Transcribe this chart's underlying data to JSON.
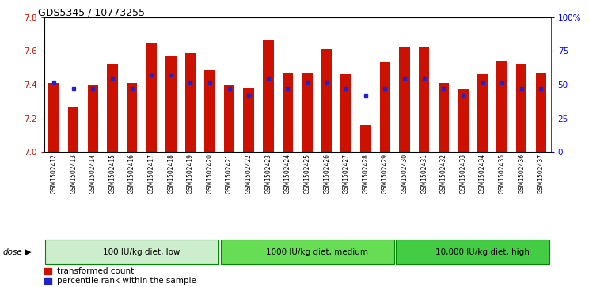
{
  "title": "GDS5345 / 10773255",
  "samples": [
    "GSM1502412",
    "GSM1502413",
    "GSM1502414",
    "GSM1502415",
    "GSM1502416",
    "GSM1502417",
    "GSM1502418",
    "GSM1502419",
    "GSM1502420",
    "GSM1502421",
    "GSM1502422",
    "GSM1502423",
    "GSM1502424",
    "GSM1502425",
    "GSM1502426",
    "GSM1502427",
    "GSM1502428",
    "GSM1502429",
    "GSM1502430",
    "GSM1502431",
    "GSM1502432",
    "GSM1502433",
    "GSM1502434",
    "GSM1502435",
    "GSM1502436",
    "GSM1502437"
  ],
  "transformed_counts": [
    7.41,
    7.27,
    7.4,
    7.52,
    7.41,
    7.65,
    7.57,
    7.59,
    7.49,
    7.4,
    7.38,
    7.67,
    7.47,
    7.47,
    7.61,
    7.46,
    7.16,
    7.53,
    7.62,
    7.62,
    7.41,
    7.37,
    7.46,
    7.54,
    7.52,
    7.47
  ],
  "percentile_ranks": [
    52,
    47,
    47,
    55,
    47,
    57,
    57,
    52,
    52,
    47,
    42,
    55,
    47,
    52,
    52,
    47,
    42,
    47,
    55,
    55,
    47,
    42,
    52,
    52,
    47,
    47
  ],
  "groups": [
    {
      "label": "100 IU/kg diet, low",
      "start": 0,
      "end": 9
    },
    {
      "label": "1000 IU/kg diet, medium",
      "start": 9,
      "end": 18
    },
    {
      "label": "10,000 IU/kg diet, high",
      "start": 18,
      "end": 26
    }
  ],
  "group_colors": [
    "#AADDAA",
    "#66CC66",
    "#44BB44"
  ],
  "ylim": [
    7.0,
    7.8
  ],
  "yticks": [
    7.0,
    7.2,
    7.4,
    7.6,
    7.8
  ],
  "y2ticks": [
    0,
    25,
    50,
    75,
    100
  ],
  "bar_color": "#CC1100",
  "dot_color": "#2222CC",
  "xtick_bg": "#DDDDDD",
  "group_border_color": "#008800",
  "legend_items": [
    {
      "label": "transformed count",
      "color": "#CC1100"
    },
    {
      "label": "percentile rank within the sample",
      "color": "#2222CC"
    }
  ],
  "dose_label": "dose"
}
